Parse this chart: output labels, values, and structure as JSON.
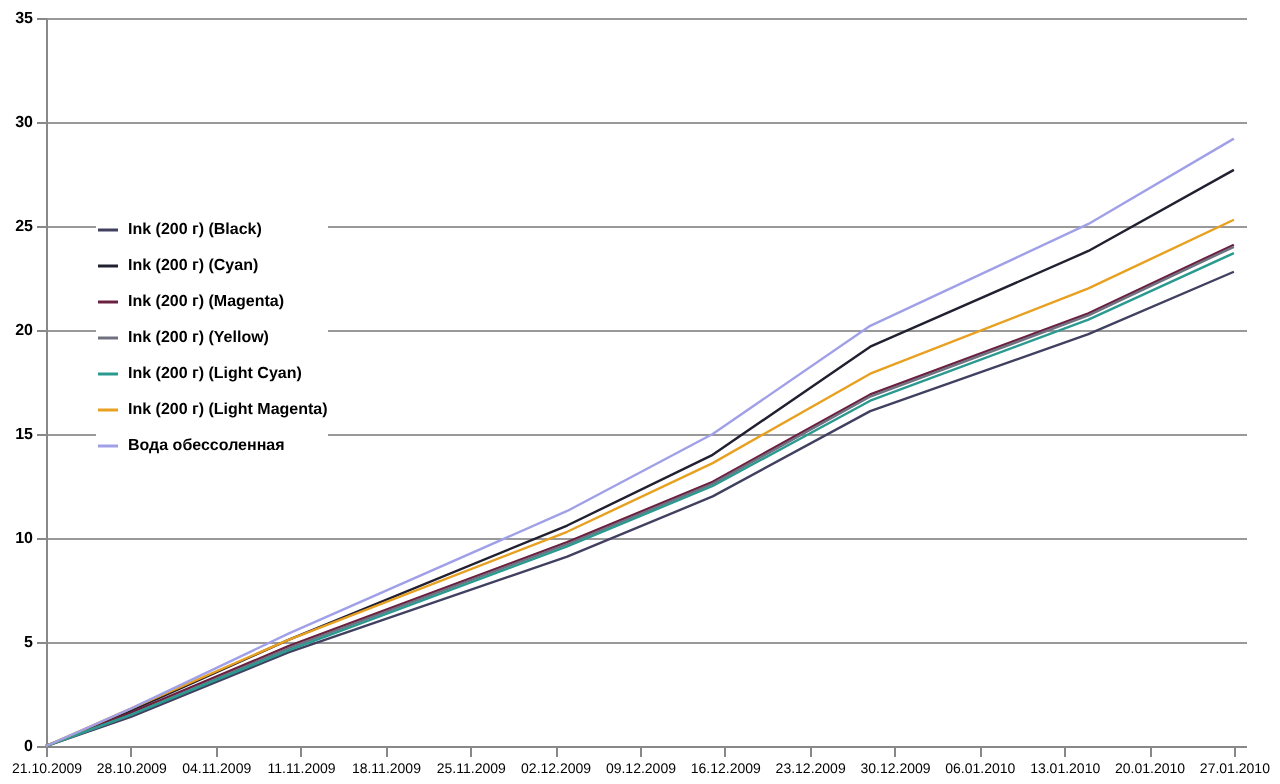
{
  "chart_data": {
    "type": "line",
    "x": [
      "2009-10-21",
      "2009-10-28",
      "2009-11-10",
      "2009-12-03",
      "2009-12-15",
      "2009-12-28",
      "2010-01-15",
      "2010-01-27"
    ],
    "series": [
      {
        "name": "Ink (200 г) (Black)",
        "color": "#404060",
        "values": [
          0,
          1.4,
          4.5,
          9.1,
          12.0,
          16.1,
          19.8,
          22.8
        ]
      },
      {
        "name": "Ink (200 г) (Cyan)",
        "color": "#202030",
        "values": [
          0,
          1.7,
          5.1,
          10.6,
          14.0,
          19.2,
          23.8,
          27.7
        ]
      },
      {
        "name": "Ink (200 г) (Magenta)",
        "color": "#6b2040",
        "values": [
          0,
          1.6,
          4.8,
          9.8,
          12.7,
          16.9,
          20.8,
          24.1
        ]
      },
      {
        "name": "Ink (200 г) (Yellow)",
        "color": "#707080",
        "values": [
          0,
          1.5,
          4.7,
          9.7,
          12.6,
          16.8,
          20.7,
          24.0
        ]
      },
      {
        "name": "Ink (200 г) (Light Cyan)",
        "color": "#2a9a90",
        "values": [
          0,
          1.5,
          4.6,
          9.6,
          12.5,
          16.6,
          20.5,
          23.7
        ]
      },
      {
        "name": "Ink (200 г) (Light Magenta)",
        "color": "#e8a020",
        "values": [
          0,
          1.8,
          5.1,
          10.3,
          13.6,
          17.9,
          22.0,
          25.3
        ]
      },
      {
        "name": "Вода обессоленная",
        "color": "#a0a0e8",
        "values": [
          0,
          1.8,
          5.4,
          11.3,
          15.0,
          20.2,
          25.1,
          29.2
        ]
      }
    ],
    "xlim": [
      "2009-10-21",
      "2010-01-28"
    ],
    "xticks": [
      {
        "value": "2009-10-21",
        "label": "21.10.2009"
      },
      {
        "value": "2009-10-28",
        "label": "28.10.2009"
      },
      {
        "value": "2009-11-04",
        "label": "04.11.2009"
      },
      {
        "value": "2009-11-11",
        "label": "11.11.2009"
      },
      {
        "value": "2009-11-18",
        "label": "18.11.2009"
      },
      {
        "value": "2009-11-25",
        "label": "25.11.2009"
      },
      {
        "value": "2009-12-02",
        "label": "02.12.2009"
      },
      {
        "value": "2009-12-09",
        "label": "09.12.2009"
      },
      {
        "value": "2009-12-16",
        "label": "16.12.2009"
      },
      {
        "value": "2009-12-23",
        "label": "23.12.2009"
      },
      {
        "value": "2009-12-30",
        "label": "30.12.2009"
      },
      {
        "value": "2010-01-06",
        "label": "06.01.2010"
      },
      {
        "value": "2010-01-13",
        "label": "13.01.2010"
      },
      {
        "value": "2010-01-20",
        "label": "20.01.2010"
      },
      {
        "value": "2010-01-27",
        "label": "27.01.2010"
      }
    ],
    "ylim": [
      0,
      35
    ],
    "yticks": [
      0,
      5,
      10,
      15,
      20,
      25,
      30,
      35
    ],
    "grid": "y",
    "legend": "left",
    "marker": "none",
    "line_style": "solid"
  }
}
